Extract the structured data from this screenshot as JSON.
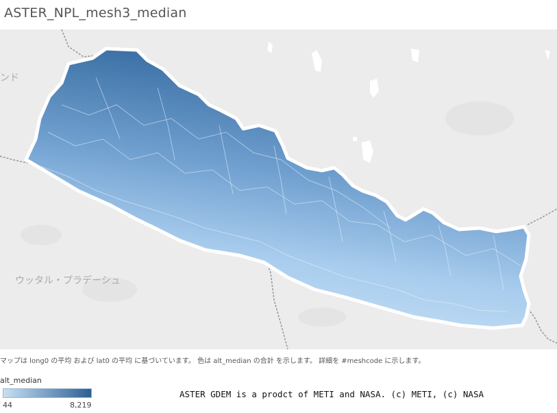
{
  "title": "ASTER_NPL_mesh3_median",
  "map": {
    "labels": {
      "partial_left": "ンド",
      "region": "ウッタル・プラデーシュ"
    },
    "colors": {
      "background": "#ececec",
      "low": "#c6e0f5",
      "high": "#2d5f93",
      "border": "#ffffff",
      "lakes": "#ffffff",
      "boundary": "#9a9a9a"
    }
  },
  "caption": "マップは long0 の平均 および lat0 の平均 に基づいています。 色は alt_median の合計 を示します。 詳細を #meshcode に示します。",
  "legend": {
    "title": "alt_median",
    "min": "44",
    "max": "8,219",
    "color_low": "#c6e0f5",
    "color_high": "#2d5f93"
  },
  "credit": "ASTER GDEM is a prodct of METI and NASA. (c) METI, (c) NASA"
}
